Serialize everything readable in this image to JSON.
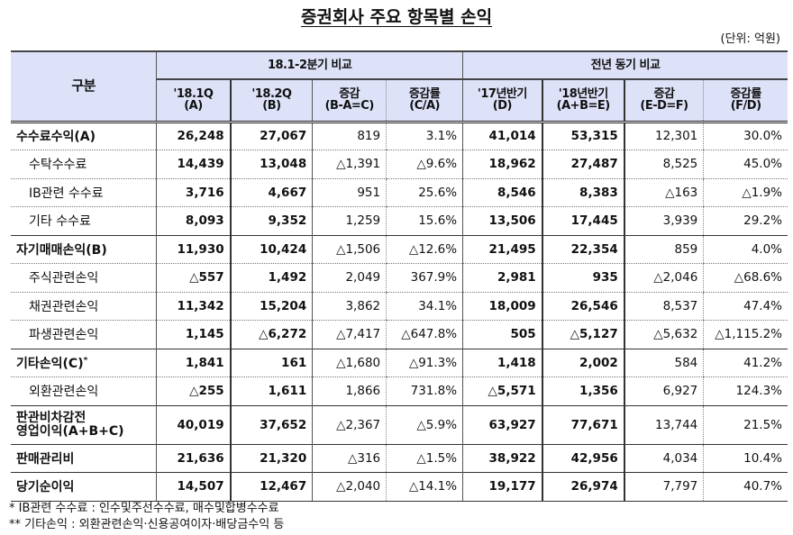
{
  "title": "증권회사 주요 항목별 손익",
  "unit": "(단위: 억원)",
  "header": {
    "row_label": "구분",
    "group1": "18.1-2분기 비교",
    "group2": "전년 동기 비교",
    "columns": [
      {
        "line1": "'18.1Q",
        "line2": "(A)"
      },
      {
        "line1": "'18.2Q",
        "line2": "(B)"
      },
      {
        "line1": "증감",
        "line2": "(B-A=C)"
      },
      {
        "line1": "증감률",
        "line2": "(C/A)"
      },
      {
        "line1": "'17년반기",
        "line2": "(D)"
      },
      {
        "line1": "'18년반기",
        "line2": "(A+B=E)"
      },
      {
        "line1": "증감",
        "line2": "(E-D=F)"
      },
      {
        "line1": "증감률",
        "line2": "(F/D)"
      }
    ]
  },
  "rows": [
    {
      "label": "수수료수익(A)",
      "values": [
        "26,248",
        "27,067",
        "819",
        "3.1%",
        "41,014",
        "53,315",
        "12,301",
        "30.0%"
      ]
    },
    {
      "label": "수탁수수료",
      "values": [
        "14,439",
        "13,048",
        "△1,391",
        "△9.6%",
        "18,962",
        "27,487",
        "8,525",
        "45.0%"
      ]
    },
    {
      "label": "IB관련 수수료",
      "values": [
        "3,716",
        "4,667",
        "951",
        "25.6%",
        "8,546",
        "8,383",
        "△163",
        "△1.9%"
      ]
    },
    {
      "label": "기타 수수료",
      "values": [
        "8,093",
        "9,352",
        "1,259",
        "15.6%",
        "13,506",
        "17,445",
        "3,939",
        "29.2%"
      ]
    },
    {
      "label": "자기매매손익(B)",
      "values": [
        "11,930",
        "10,424",
        "△1,506",
        "△12.6%",
        "21,495",
        "22,354",
        "859",
        "4.0%"
      ]
    },
    {
      "label": "주식관련손익",
      "values": [
        "△557",
        "1,492",
        "2,049",
        "367.9%",
        "2,981",
        "935",
        "△2,046",
        "△68.6%"
      ]
    },
    {
      "label": "채권관련손익",
      "values": [
        "11,342",
        "15,204",
        "3,862",
        "34.1%",
        "18,009",
        "26,546",
        "8,537",
        "47.4%"
      ]
    },
    {
      "label": "파생관련손익",
      "values": [
        "1,145",
        "△6,272",
        "△7,417",
        "△647.8%",
        "505",
        "△5,127",
        "△5,632",
        "△1,115.2%"
      ]
    },
    {
      "label": "기타손익(C)",
      "sup": "*",
      "values": [
        "1,841",
        "161",
        "△1,680",
        "△91.3%",
        "1,418",
        "2,002",
        "584",
        "41.2%"
      ]
    },
    {
      "label": "외환관련손익",
      "values": [
        "△255",
        "1,611",
        "1,866",
        "731.8%",
        "△5,571",
        "1,356",
        "6,927",
        "124.3%"
      ]
    },
    {
      "label1": "판관비차감전",
      "label2": "영업이익(A+B+C)",
      "values": [
        "40,019",
        "37,652",
        "△2,367",
        "△5.9%",
        "63,927",
        "77,671",
        "13,744",
        "21.5%"
      ]
    },
    {
      "label": "판매관리비",
      "values": [
        "21,636",
        "21,320",
        "△316",
        "△1.5%",
        "38,922",
        "42,956",
        "4,034",
        "10.4%"
      ]
    },
    {
      "label": "당기순이익",
      "values": [
        "14,507",
        "12,467",
        "△2,040",
        "△14.1%",
        "19,177",
        "26,974",
        "7,797",
        "40.7%"
      ]
    }
  ],
  "notes": [
    "* IB관련 수수료 : 인수및주선수수료, 매수및합병수수료",
    "** 기타손익 : 외환관련손익·신용공여이자·배당금수익 등"
  ]
}
